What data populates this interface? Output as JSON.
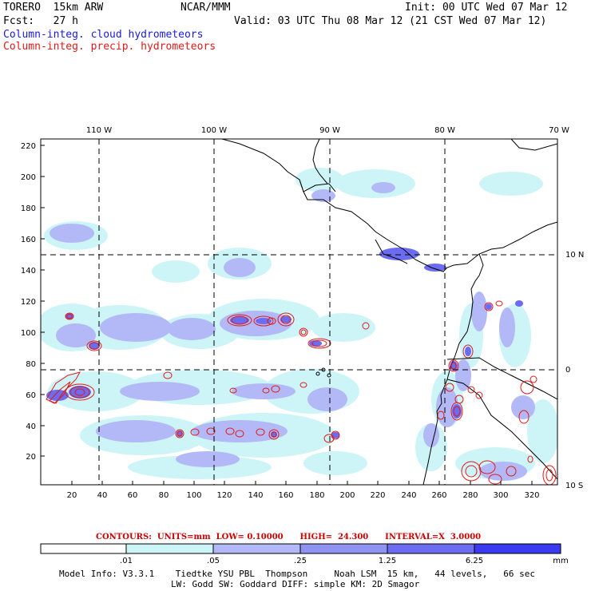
{
  "header": {
    "model": "TORERO  15km ARW",
    "center": "NCAR/MMM",
    "init": "Init: 00 UTC Wed 07 Mar 12",
    "fcst": "Fcst:   27 h",
    "valid": "Valid: 03 UTC Thu 08 Mar 12 (21 CST Wed 07 Mar 12)",
    "field1": "Column-integ. cloud hydrometeors",
    "field2": "Column-integ. precip. hydrometeors"
  },
  "map": {
    "top_labels": [
      "110 W",
      "100 W",
      "90 W",
      "80 W",
      "70 W"
    ],
    "right_labels": [
      "10 N",
      "0",
      "10 S"
    ],
    "x_ticks": [
      "20",
      "40",
      "60",
      "80",
      "100",
      "120",
      "140",
      "160",
      "180",
      "200",
      "220",
      "240",
      "260",
      "280",
      "300",
      "320"
    ],
    "y_ticks": [
      "20",
      "40",
      "60",
      "80",
      "100",
      "120",
      "140",
      "160",
      "180",
      "200",
      "220"
    ]
  },
  "contours_line": {
    "text": "CONTOURS:  UNITS=mm  LOW= 0.10000      HIGH=  24.300      INTERVAL=X  3.0000"
  },
  "colorbar": {
    "labels": [
      ".01",
      ".05",
      ".25",
      "1.25",
      "6.25"
    ],
    "unit": "mm",
    "colors": [
      "#ffffff",
      "#cdf5f8",
      "#b3b9f7",
      "#8f93f2",
      "#6b6cef",
      "#3a3af0"
    ]
  },
  "footer": {
    "line1": "Model Info: V3.3.1    Tiedtke YSU PBL  Thompson     Noah LSM  15 km,   44 levels,   66 sec",
    "line2": "LW: Godd SW: Goddard DIFF: simple KM: 2D Smagor"
  },
  "colors": {
    "cloud_light": "#cdf5f8",
    "cloud_mid": "#b3b9f7",
    "cloud_dark": "#8f93f2",
    "cloud_darker": "#6b6cef",
    "precip_contour": "#e01a1a"
  }
}
